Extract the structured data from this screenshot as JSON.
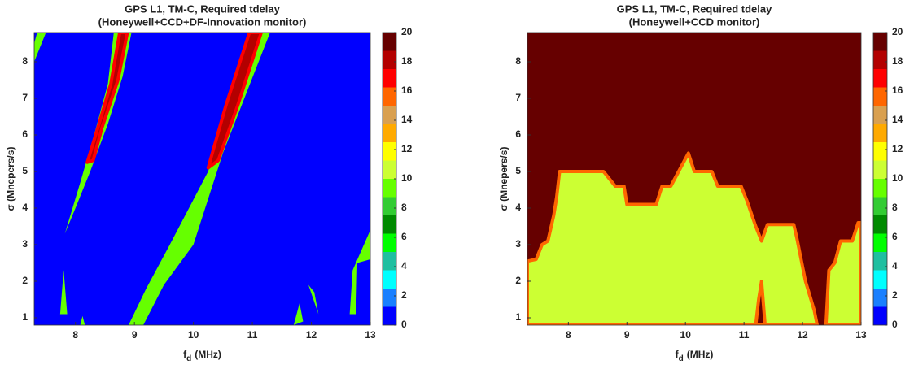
{
  "chart_data": [
    {
      "type": "contour",
      "title": "GPS L1, TM-C, Required tdelay",
      "subtitle": "(Honeywell+CCD+DF-Innovation monitor)",
      "xlabel_main": "f",
      "xlabel_sub": "d",
      "xlabel_unit": "(MHz)",
      "ylabel": "σ (Mnepers/s)",
      "xlim": [
        7.3,
        13
      ],
      "xticks": [
        8,
        9,
        10,
        11,
        12,
        13
      ],
      "ylim": [
        0.8,
        8.8
      ],
      "yticks": [
        1,
        2,
        3,
        4,
        5,
        6,
        7,
        8
      ],
      "clim": [
        0,
        20
      ],
      "cticks": [
        0,
        2,
        4,
        6,
        8,
        10,
        12,
        14,
        16,
        18,
        20
      ],
      "levels": [
        0,
        1.25,
        2.5,
        3.75,
        5,
        6.25,
        7.5,
        8.75,
        10,
        11.25,
        12.5,
        13.75,
        15,
        16.25,
        17.5,
        18.75,
        20
      ],
      "colors": [
        "#0000ff",
        "#1a80ff",
        "#00ffff",
        "#1fbfa0",
        "#00ff00",
        "#008a00",
        "#33cc33",
        "#66ff00",
        "#ccff33",
        "#ffff00",
        "#ffaa00",
        "#d9a050",
        "#ff6600",
        "#ff0000",
        "#b30000",
        "#660000"
      ],
      "background_level": 0,
      "regions": [
        {
          "level": 9.5,
          "points": [
            [
              7.3,
              8.0
            ],
            [
              7.3,
              8.5
            ],
            [
              7.35,
              8.8
            ],
            [
              7.5,
              8.8
            ]
          ]
        },
        {
          "level": 9.5,
          "points": [
            [
              7.82,
              3.3
            ],
            [
              8.1,
              4.8
            ],
            [
              8.35,
              6.2
            ],
            [
              8.55,
              7.4
            ],
            [
              8.65,
              8.8
            ],
            [
              8.95,
              8.8
            ],
            [
              8.8,
              7.6
            ],
            [
              8.55,
              6.3
            ],
            [
              8.25,
              5.0
            ],
            [
              8.0,
              4.0
            ]
          ]
        },
        {
          "level": 17.5,
          "edge_level": 16.5,
          "points": [
            [
              8.2,
              5.25
            ],
            [
              8.4,
              6.3
            ],
            [
              8.6,
              7.4
            ],
            [
              8.75,
              8.8
            ],
            [
              8.88,
              8.8
            ],
            [
              8.72,
              7.5
            ],
            [
              8.45,
              6.2
            ],
            [
              8.3,
              5.3
            ]
          ]
        },
        {
          "level": 9.5,
          "points": [
            [
              8.9,
              0.8
            ],
            [
              9.2,
              1.8
            ],
            [
              9.6,
              3.0
            ],
            [
              10.25,
              5.0
            ],
            [
              10.95,
              8.8
            ],
            [
              11.3,
              8.8
            ],
            [
              10.5,
              5.5
            ],
            [
              10.0,
              3.0
            ],
            [
              9.5,
              1.9
            ],
            [
              9.15,
              0.8
            ]
          ]
        },
        {
          "level": 17.5,
          "edge_level": 16.5,
          "points": [
            [
              10.25,
              5.1
            ],
            [
              10.55,
              6.8
            ],
            [
              10.95,
              8.8
            ],
            [
              11.15,
              8.8
            ],
            [
              10.75,
              6.8
            ],
            [
              10.42,
              5.3
            ]
          ]
        },
        {
          "level": 9.5,
          "points": [
            [
              7.74,
              1.1
            ],
            [
              7.8,
              2.3
            ],
            [
              7.86,
              1.1
            ]
          ]
        },
        {
          "level": 9.5,
          "points": [
            [
              8.08,
              0.8
            ],
            [
              8.12,
              1.05
            ],
            [
              8.16,
              0.8
            ]
          ]
        },
        {
          "level": 9.5,
          "points": [
            [
              11.7,
              0.8
            ],
            [
              11.8,
              1.4
            ],
            [
              11.86,
              0.9
            ]
          ]
        },
        {
          "level": 9.5,
          "points": [
            [
              11.95,
              1.9
            ],
            [
              12.05,
              1.7
            ],
            [
              12.12,
              1.1
            ]
          ]
        },
        {
          "level": 9.5,
          "points": [
            [
              12.65,
              1.1
            ],
            [
              12.7,
              2.3
            ],
            [
              13.0,
              3.4
            ],
            [
              13.0,
              2.6
            ],
            [
              12.78,
              2.5
            ],
            [
              12.76,
              1.1
            ]
          ]
        }
      ]
    },
    {
      "type": "contour",
      "title": "GPS L1, TM-C, Required tdelay",
      "subtitle": "(Honeywell+CCD monitor)",
      "xlabel_main": "f",
      "xlabel_sub": "d",
      "xlabel_unit": "(MHz)",
      "ylabel": "σ (Mnepers/s)",
      "xlim": [
        7.3,
        13
      ],
      "xticks": [
        8,
        9,
        10,
        11,
        12,
        13
      ],
      "ylim": [
        0.8,
        8.8
      ],
      "yticks": [
        1,
        2,
        3,
        4,
        5,
        6,
        7,
        8
      ],
      "clim": [
        0,
        20
      ],
      "cticks": [
        0,
        2,
        4,
        6,
        8,
        10,
        12,
        14,
        16,
        18,
        20
      ],
      "levels": [
        0,
        1.25,
        2.5,
        3.75,
        5,
        6.25,
        7.5,
        8.75,
        10,
        11.25,
        12.5,
        13.75,
        15,
        16.25,
        17.5,
        18.75,
        20
      ],
      "colors": [
        "#0000ff",
        "#1a80ff",
        "#00ffff",
        "#1fbfa0",
        "#00ff00",
        "#008a00",
        "#33cc33",
        "#66ff00",
        "#ccff33",
        "#ffff00",
        "#ffaa00",
        "#d9a050",
        "#ff6600",
        "#ff0000",
        "#b30000",
        "#660000"
      ],
      "background_level": 19.5,
      "regions": [
        {
          "level": 11,
          "edge_level": 15.5,
          "points": [
            [
              7.3,
              0.8
            ],
            [
              7.3,
              2.55
            ],
            [
              7.45,
              2.6
            ],
            [
              7.55,
              3.0
            ],
            [
              7.65,
              3.1
            ],
            [
              7.75,
              3.8
            ],
            [
              7.8,
              4.3
            ],
            [
              7.85,
              5.0
            ],
            [
              8.6,
              5.0
            ],
            [
              8.8,
              4.6
            ],
            [
              8.95,
              4.6
            ],
            [
              9.0,
              4.1
            ],
            [
              9.5,
              4.1
            ],
            [
              9.6,
              4.6
            ],
            [
              9.75,
              4.6
            ],
            [
              9.95,
              5.2
            ],
            [
              10.05,
              5.5
            ],
            [
              10.15,
              5.0
            ],
            [
              10.45,
              5.0
            ],
            [
              10.55,
              4.6
            ],
            [
              10.95,
              4.6
            ],
            [
              11.05,
              4.2
            ],
            [
              11.2,
              3.5
            ],
            [
              11.3,
              3.1
            ],
            [
              11.4,
              3.55
            ],
            [
              11.85,
              3.55
            ],
            [
              11.9,
              3.2
            ],
            [
              12.05,
              2.0
            ],
            [
              12.2,
              1.2
            ],
            [
              12.25,
              0.8
            ]
          ]
        },
        {
          "level": 11,
          "edge_level": 15.5,
          "points": [
            [
              12.4,
              0.8
            ],
            [
              12.45,
              2.3
            ],
            [
              12.55,
              2.5
            ],
            [
              12.65,
              3.1
            ],
            [
              12.85,
              3.1
            ],
            [
              12.95,
              3.6
            ],
            [
              13.0,
              3.6
            ],
            [
              13.0,
              0.8
            ]
          ]
        },
        {
          "level": 19.5,
          "edge_level": 15.5,
          "points": [
            [
              11.2,
              0.8
            ],
            [
              11.25,
              1.5
            ],
            [
              11.3,
              2.0
            ],
            [
              11.36,
              0.8
            ]
          ]
        }
      ]
    }
  ]
}
